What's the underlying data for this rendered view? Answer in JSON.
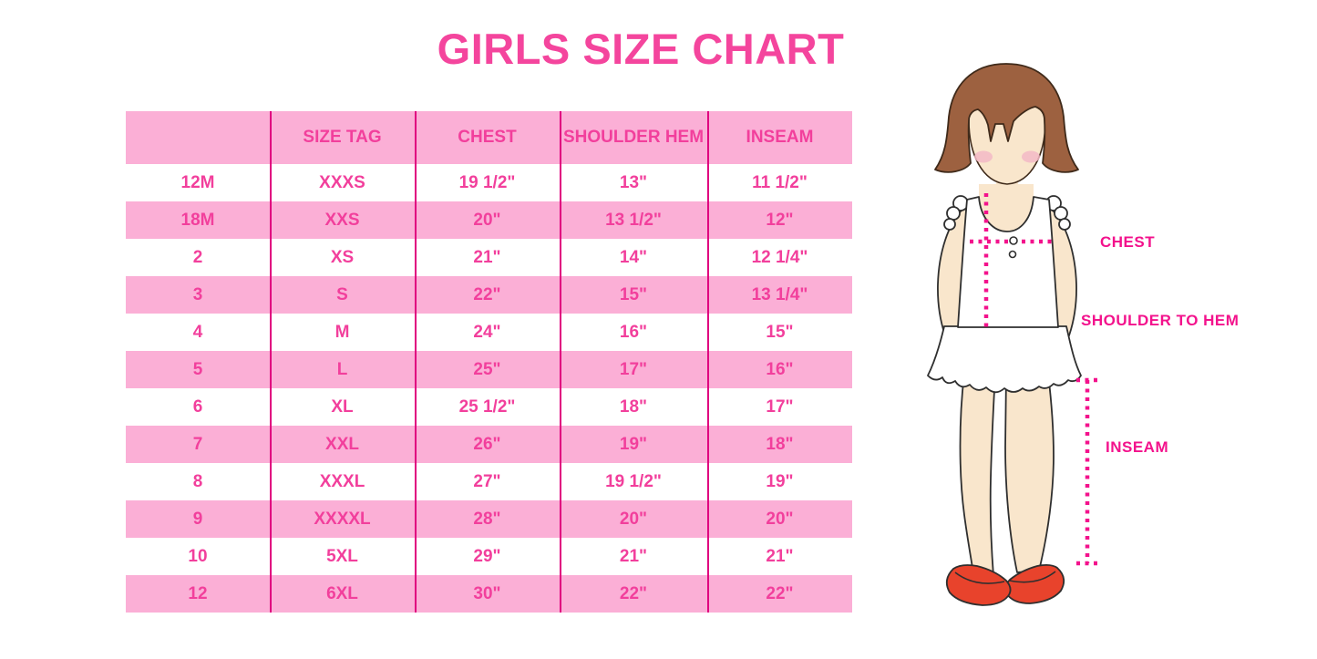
{
  "chart_data": {
    "type": "table",
    "title": "GIRLS SIZE CHART",
    "columns": [
      "",
      "SIZE TAG",
      "CHEST",
      "SHOULDER HEM",
      "INSEAM"
    ],
    "rows": [
      [
        "12M",
        "XXXS",
        "19 1/2\"",
        "13\"",
        "11 1/2\""
      ],
      [
        "18M",
        "XXS",
        "20\"",
        "13 1/2\"",
        "12\""
      ],
      [
        "2",
        "XS",
        "21\"",
        "14\"",
        "12 1/4\""
      ],
      [
        "3",
        "S",
        "22\"",
        "15\"",
        "13 1/4\""
      ],
      [
        "4",
        "M",
        "24\"",
        "16\"",
        "15\""
      ],
      [
        "5",
        "L",
        "25\"",
        "17\"",
        "16\""
      ],
      [
        "6",
        "XL",
        "25 1/2\"",
        "18\"",
        "17\""
      ],
      [
        "7",
        "XXL",
        "26\"",
        "19\"",
        "18\""
      ],
      [
        "8",
        "XXXL",
        "27\"",
        "19 1/2\"",
        "19\""
      ],
      [
        "9",
        "XXXXL",
        "28\"",
        "20\"",
        "20\""
      ],
      [
        "10",
        "5XL",
        "29\"",
        "21\"",
        "21\""
      ],
      [
        "12",
        "6XL",
        "30\"",
        "22\"",
        "22\""
      ]
    ],
    "layout": {
      "row_striping": "alternating white and pink, header pink",
      "grid": "vertical magenta column dividers only"
    }
  },
  "figure": {
    "labels": {
      "chest": "CHEST",
      "shoulder_to_hem": "SHOULDER TO HEM",
      "inseam": "INSEAM"
    }
  },
  "colors": {
    "title_pink": "#F4459D",
    "row_pink": "#FBAFD6",
    "row_white": "#FFFFFF",
    "grid_line": "#E0007F",
    "cell_text": "#F23F9C",
    "label_magenta": "#F3128C",
    "hair_brown": "#9D6140",
    "skin": "#F9E6CC",
    "blush": "#F3B9C6",
    "shoe_red": "#E8432C"
  }
}
